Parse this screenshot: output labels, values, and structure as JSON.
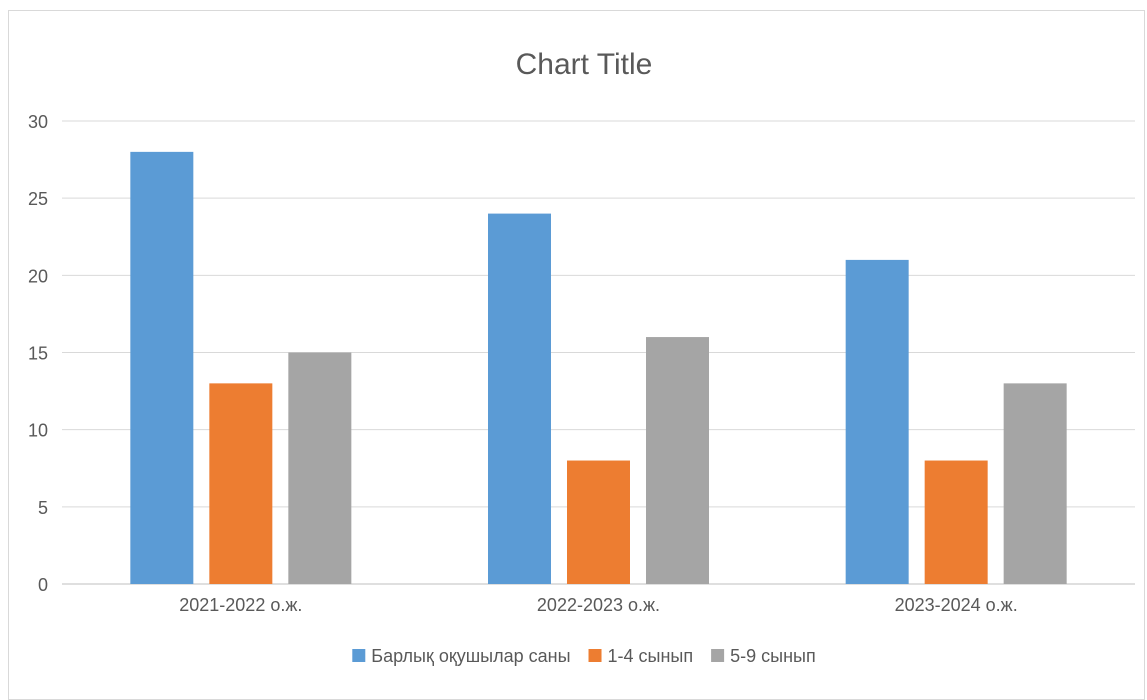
{
  "chart_data": {
    "type": "bar",
    "title": "Chart Title",
    "xlabel": "",
    "ylabel": "",
    "categories": [
      "2021-2022 о.ж.",
      "2022-2023 о.ж.",
      "2023-2024 о.ж."
    ],
    "series": [
      {
        "name": "Барлық оқушылар саны",
        "values": [
          28,
          24,
          21
        ],
        "color": "#5b9bd5"
      },
      {
        "name": "1-4 сынып",
        "values": [
          13,
          8,
          8
        ],
        "color": "#ed7d31"
      },
      {
        "name": "5-9 сынып",
        "values": [
          15,
          16,
          13
        ],
        "color": "#a5a5a5"
      }
    ],
    "ylim": [
      0,
      30
    ],
    "yticks": [
      "0",
      "5",
      "10",
      "15",
      "20",
      "25",
      "30"
    ],
    "grid": true,
    "legend": "bottom"
  }
}
